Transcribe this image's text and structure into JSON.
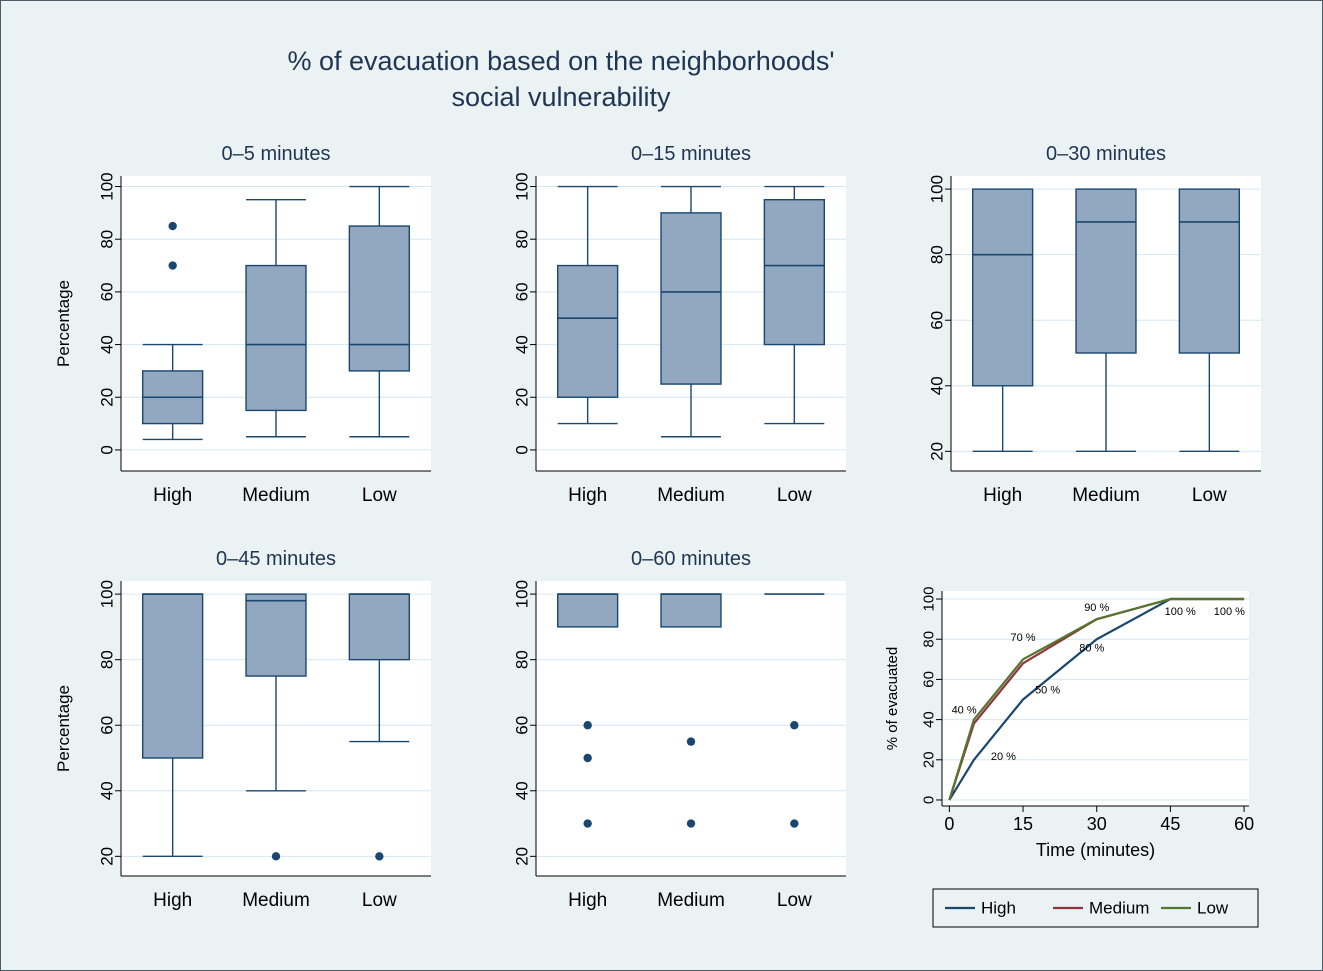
{
  "title": {
    "line1": "% of evacuation based on the neighborhoods'",
    "line2": "social vulnerability"
  },
  "colors": {
    "background": "#eaf2f3",
    "plot_bg": "#ffffff",
    "grid": "#d6e6f0",
    "box_fill": "#92a7c0",
    "box_border": "#1a476f",
    "navy": "#1a476f",
    "maroon": "#90353b",
    "green": "#55752f",
    "title_text": "#1f3554",
    "axis_text": "#000000"
  },
  "chart_data": [
    {
      "type": "box",
      "title": "0–5 minutes",
      "ylabel": "Percentage",
      "categories": [
        "High",
        "Medium",
        "Low"
      ],
      "yticks": [
        0,
        20,
        40,
        60,
        80,
        100
      ],
      "ylim": [
        -8,
        104
      ],
      "boxes": [
        {
          "whisker_low": 4,
          "q1": 10,
          "median": 20,
          "q3": 30,
          "whisker_high": 40,
          "outliers": [
            70,
            85
          ]
        },
        {
          "whisker_low": 5,
          "q1": 15,
          "median": 40,
          "q3": 70,
          "whisker_high": 95,
          "outliers": []
        },
        {
          "whisker_low": 5,
          "q1": 30,
          "median": 40,
          "q3": 85,
          "whisker_high": 100,
          "outliers": []
        }
      ]
    },
    {
      "type": "box",
      "title": "0–15 minutes",
      "ylabel": "",
      "categories": [
        "High",
        "Medium",
        "Low"
      ],
      "yticks": [
        0,
        20,
        40,
        60,
        80,
        100
      ],
      "ylim": [
        -8,
        104
      ],
      "boxes": [
        {
          "whisker_low": 10,
          "q1": 20,
          "median": 50,
          "q3": 70,
          "whisker_high": 100,
          "outliers": []
        },
        {
          "whisker_low": 5,
          "q1": 25,
          "median": 60,
          "q3": 90,
          "whisker_high": 100,
          "outliers": []
        },
        {
          "whisker_low": 10,
          "q1": 40,
          "median": 70,
          "q3": 95,
          "whisker_high": 100,
          "outliers": []
        }
      ]
    },
    {
      "type": "box",
      "title": "0–30 minutes",
      "ylabel": "",
      "categories": [
        "High",
        "Medium",
        "Low"
      ],
      "yticks": [
        20,
        40,
        60,
        80,
        100
      ],
      "ylim": [
        14,
        104
      ],
      "boxes": [
        {
          "whisker_low": 20,
          "q1": 40,
          "median": 80,
          "q3": 100,
          "whisker_high": 100,
          "outliers": []
        },
        {
          "whisker_low": 20,
          "q1": 50,
          "median": 90,
          "q3": 100,
          "whisker_high": 100,
          "outliers": []
        },
        {
          "whisker_low": 20,
          "q1": 50,
          "median": 90,
          "q3": 100,
          "whisker_high": 100,
          "outliers": []
        }
      ]
    },
    {
      "type": "box",
      "title": "0–45 minutes",
      "ylabel": "Percentage",
      "categories": [
        "High",
        "Medium",
        "Low"
      ],
      "yticks": [
        20,
        40,
        60,
        80,
        100
      ],
      "ylim": [
        14,
        104
      ],
      "boxes": [
        {
          "whisker_low": 20,
          "q1": 50,
          "median": 100,
          "q3": 100,
          "whisker_high": 100,
          "outliers": []
        },
        {
          "whisker_low": 40,
          "q1": 75,
          "median": 98,
          "q3": 100,
          "whisker_high": 100,
          "outliers": [
            20
          ]
        },
        {
          "whisker_low": 55,
          "q1": 80,
          "median": 100,
          "q3": 100,
          "whisker_high": 100,
          "outliers": [
            20
          ]
        }
      ]
    },
    {
      "type": "box",
      "title": "0–60 minutes",
      "ylabel": "",
      "categories": [
        "High",
        "Medium",
        "Low"
      ],
      "yticks": [
        20,
        40,
        60,
        80,
        100
      ],
      "ylim": [
        14,
        104
      ],
      "boxes": [
        {
          "whisker_low": 90,
          "q1": 90,
          "median": 100,
          "q3": 100,
          "whisker_high": 100,
          "outliers": [
            60,
            50,
            30
          ]
        },
        {
          "whisker_low": 90,
          "q1": 90,
          "median": 100,
          "q3": 100,
          "whisker_high": 100,
          "outliers": [
            55,
            30
          ]
        },
        {
          "whisker_low": 100,
          "q1": 100,
          "median": 100,
          "q3": 100,
          "whisker_high": 100,
          "outliers": [
            60,
            30
          ]
        }
      ]
    },
    {
      "type": "line",
      "title": "",
      "xlabel": "Time (minutes)",
      "ylabel": "% of evacuated",
      "xticks": [
        0,
        15,
        30,
        45,
        60
      ],
      "yticks": [
        0,
        20,
        40,
        60,
        80,
        100
      ],
      "xlim": [
        -1.5,
        61
      ],
      "ylim": [
        -3,
        104
      ],
      "series": [
        {
          "name": "High",
          "color": "#1a476f",
          "x": [
            0,
            5,
            15,
            30,
            45,
            60
          ],
          "y": [
            0,
            20,
            50,
            80,
            100,
            100
          ]
        },
        {
          "name": "Medium",
          "color": "#90353b",
          "x": [
            0,
            5,
            15,
            30,
            45,
            60
          ],
          "y": [
            0,
            38,
            68,
            90,
            100,
            100
          ]
        },
        {
          "name": "Low",
          "color": "#55752f",
          "x": [
            0,
            5,
            15,
            30,
            45,
            60
          ],
          "y": [
            0,
            40,
            70,
            90,
            100,
            100
          ]
        }
      ],
      "annotations": [
        {
          "text": "20 %",
          "x": 11,
          "y": 20
        },
        {
          "text": "50 %",
          "x": 20,
          "y": 53
        },
        {
          "text": "80 %",
          "x": 29,
          "y": 74
        },
        {
          "text": "40 %",
          "x": 3,
          "y": 43
        },
        {
          "text": "70 %",
          "x": 15,
          "y": 79
        },
        {
          "text": "90 %",
          "x": 30,
          "y": 94
        },
        {
          "text": "100 %",
          "x": 47,
          "y": 92
        },
        {
          "text": "100 %",
          "x": 57,
          "y": 92
        }
      ],
      "legend": {
        "labels": [
          "High",
          "Medium",
          "Low"
        ]
      }
    }
  ]
}
